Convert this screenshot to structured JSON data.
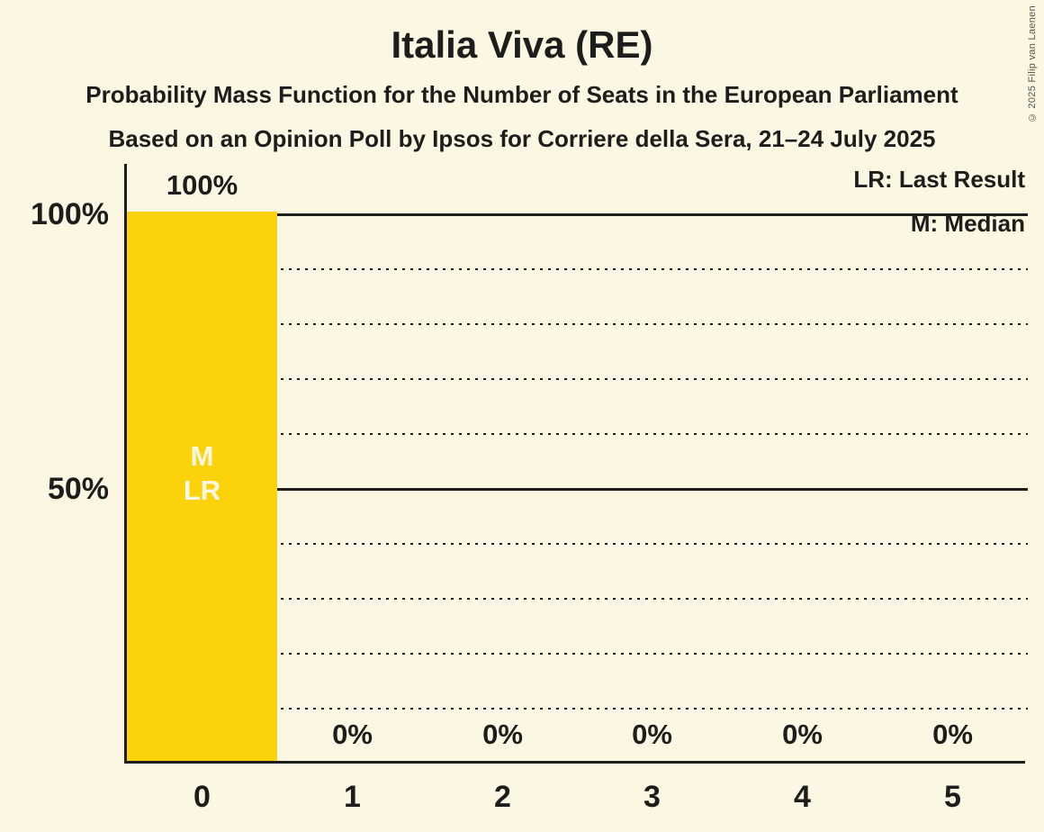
{
  "page": {
    "background_color": "#FBF7E2",
    "text_color": "#1D1D1B",
    "copyright": "© 2025 Filip van Laenen"
  },
  "chart_data": {
    "type": "bar",
    "title": "Italia Viva (RE)",
    "subtitle": "Probability Mass Function for the Number of Seats in the European Parliament",
    "source_line": "Based on an Opinion Poll by Ipsos for Corriere della Sera, 21–24 July 2025",
    "categories": [
      "0",
      "1",
      "2",
      "3",
      "4",
      "5"
    ],
    "values": [
      100,
      0,
      0,
      0,
      0,
      0
    ],
    "value_labels": [
      "100%",
      "0%",
      "0%",
      "0%",
      "0%",
      "0%"
    ],
    "xlabel": "",
    "ylabel": "",
    "ylim": [
      0,
      100
    ],
    "ytick_labels": [
      "100%",
      "50%"
    ],
    "grid": "horizontal dotted lines every 10%, solid lines at 50% and 100%",
    "legend_position": "top-right",
    "legend": [
      {
        "abbr": "LR",
        "label": "LR: Last Result"
      },
      {
        "abbr": "M",
        "label": "M: Median"
      }
    ],
    "bar_annotations": {
      "median_marker": "M",
      "last_result_marker": "LR",
      "applies_to_category": "0"
    },
    "bar_color": "#FCD30A"
  }
}
